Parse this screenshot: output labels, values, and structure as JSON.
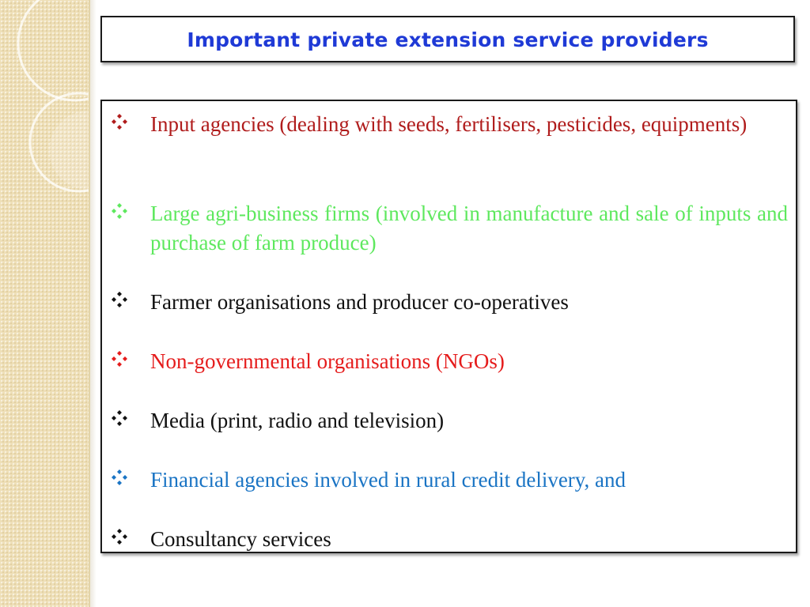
{
  "slide": {
    "title": "Important private extension service providers",
    "title_color": "#1f3ad6",
    "bullets": [
      {
        "text": "Input agencies (dealing with seeds, fertilisers, pesticides, equipments)",
        "color": "#b01c1c",
        "icon_color": "#b01c1c",
        "icon": "diamond-bullet-icon"
      },
      {
        "text": "Large agri-business firms (involved in manufacture and sale of inputs and purchase of farm produce)",
        "color": "#5ee85e",
        "icon_color": "#5ee85e",
        "icon": "diamond-bullet-icon"
      },
      {
        "text": "Farmer organisations and producer co-operatives",
        "color": "#111111",
        "icon_color": "#111111",
        "icon": "diamond-bullet-icon"
      },
      {
        "text": "Non-governmental organisations (NGOs)",
        "color": "#e51c1c",
        "icon_color": "#e51c1c",
        "icon": "diamond-bullet-icon"
      },
      {
        "text": "Media (print, radio and television)",
        "color": "#111111",
        "icon_color": "#111111",
        "icon": "diamond-bullet-icon"
      },
      {
        "text": "Financial agencies involved in rural credit delivery, and",
        "color": "#1a74c4",
        "icon_color": "#1a74c4",
        "icon": "diamond-bullet-icon"
      },
      {
        "text": "Consultancy services",
        "color": "#111111",
        "icon_color": "#111111",
        "icon": "diamond-bullet-icon"
      }
    ]
  },
  "theme": {
    "side_panel_color": "#eedfb7",
    "box_border_color": "#1a1a1a"
  }
}
